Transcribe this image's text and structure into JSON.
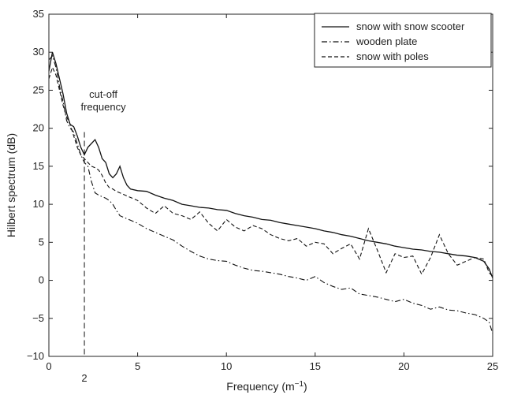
{
  "chart_data": {
    "type": "line",
    "xlabel": "Frequency (m",
    "xlabel_sup": "−1",
    "xlabel_close": ")",
    "ylabel": "Hilbert spectrum (dB)",
    "xlim": [
      0,
      25
    ],
    "ylim": [
      -10,
      35
    ],
    "xticks": [
      0,
      5,
      10,
      15,
      20,
      25
    ],
    "yticks": [
      -10,
      -5,
      0,
      5,
      10,
      15,
      20,
      25,
      30,
      35
    ],
    "grid": false,
    "legend_position": "top-right",
    "annotation": {
      "lines": [
        "cut-off",
        "frequency"
      ],
      "x": 2,
      "x_label": "2"
    },
    "series": [
      {
        "name": "snow with snow scooter",
        "style": "solid",
        "x": [
          0,
          0.2,
          0.4,
          0.6,
          0.8,
          1.0,
          1.2,
          1.4,
          1.6,
          1.8,
          2.0,
          2.2,
          2.4,
          2.6,
          2.8,
          3.0,
          3.2,
          3.4,
          3.6,
          3.8,
          4.0,
          4.2,
          4.4,
          4.6,
          5.0,
          5.5,
          6,
          6.5,
          7,
          7.5,
          8,
          8.5,
          9,
          9.5,
          10,
          10.5,
          11,
          11.5,
          12,
          12.5,
          13,
          13.5,
          14,
          14.5,
          15,
          15.5,
          16,
          16.5,
          17,
          17.5,
          18,
          18.5,
          19,
          19.5,
          20,
          20.5,
          21,
          21.5,
          22,
          22.5,
          23,
          23.5,
          24,
          24.5,
          24.8,
          25
        ],
        "y": [
          27.5,
          30.0,
          28.5,
          26.5,
          24.5,
          22.0,
          20.5,
          20.2,
          19.0,
          17.5,
          16.5,
          17.5,
          18.0,
          18.5,
          17.5,
          16.0,
          15.5,
          14.0,
          13.5,
          14.0,
          15.0,
          13.5,
          12.5,
          12.0,
          11.8,
          11.7,
          11.2,
          10.8,
          10.5,
          10.0,
          9.8,
          9.6,
          9.5,
          9.3,
          9.2,
          8.8,
          8.5,
          8.3,
          8.0,
          7.9,
          7.6,
          7.4,
          7.2,
          7.0,
          6.8,
          6.5,
          6.3,
          6.0,
          5.8,
          5.5,
          5.2,
          5.0,
          4.8,
          4.5,
          4.3,
          4.1,
          4.0,
          3.8,
          3.7,
          3.5,
          3.3,
          3.2,
          3.0,
          2.5,
          1.5,
          0.3
        ]
      },
      {
        "name": "wooden plate",
        "style": "dashdot",
        "x": [
          0,
          0.2,
          0.4,
          0.6,
          0.8,
          1.0,
          1.2,
          1.4,
          1.6,
          1.8,
          2.0,
          2.2,
          2.4,
          2.6,
          2.8,
          3.0,
          3.2,
          3.4,
          3.6,
          3.8,
          4.0,
          4.5,
          5,
          5.5,
          6,
          6.5,
          7,
          7.5,
          8,
          8.5,
          9,
          9.5,
          10,
          10.5,
          11,
          11.5,
          12,
          12.5,
          13,
          13.5,
          14,
          14.5,
          15,
          15.5,
          16,
          16.5,
          17,
          17.5,
          18,
          18.5,
          19,
          19.5,
          20,
          20.5,
          21,
          21.5,
          22,
          22.5,
          23,
          23.5,
          24,
          24.5,
          24.8,
          25
        ],
        "y": [
          29.0,
          29.5,
          28.0,
          25.5,
          23.5,
          21.0,
          20.0,
          19.5,
          18.0,
          16.5,
          15.5,
          15.0,
          13.0,
          11.5,
          11.2,
          11.0,
          10.8,
          10.5,
          10.0,
          9.2,
          8.5,
          8.0,
          7.5,
          6.8,
          6.3,
          5.8,
          5.3,
          4.5,
          3.8,
          3.2,
          2.8,
          2.6,
          2.5,
          2.0,
          1.6,
          1.3,
          1.2,
          1.0,
          0.8,
          0.5,
          0.3,
          0.0,
          0.5,
          -0.3,
          -0.8,
          -1.2,
          -1.0,
          -1.8,
          -2.0,
          -2.2,
          -2.5,
          -2.8,
          -2.5,
          -3.0,
          -3.3,
          -3.8,
          -3.5,
          -3.9,
          -4.0,
          -4.3,
          -4.5,
          -5.0,
          -5.5,
          -7.0
        ]
      },
      {
        "name": "snow with poles",
        "style": "dashed",
        "x": [
          0,
          0.2,
          0.4,
          0.6,
          0.8,
          1.0,
          1.2,
          1.4,
          1.6,
          1.8,
          2.0,
          2.2,
          2.4,
          2.6,
          2.8,
          3.0,
          3.2,
          3.4,
          3.6,
          3.8,
          4.0,
          4.5,
          5,
          5.5,
          6,
          6.5,
          7,
          7.5,
          8,
          8.5,
          9,
          9.5,
          10,
          10.5,
          11,
          11.5,
          12,
          12.5,
          13,
          13.5,
          14,
          14.5,
          15,
          15.5,
          16,
          16.5,
          17,
          17.5,
          18,
          18.5,
          19,
          19.5,
          20,
          20.5,
          21,
          21.5,
          22,
          22.5,
          23,
          23.5,
          24,
          24.5,
          24.8,
          25
        ],
        "y": [
          26.5,
          28.0,
          27.0,
          25.0,
          23.0,
          21.5,
          20.5,
          19.0,
          17.5,
          16.5,
          16.0,
          15.5,
          15.0,
          14.8,
          14.5,
          13.8,
          12.8,
          12.2,
          12.0,
          11.7,
          11.5,
          11.0,
          10.5,
          9.5,
          8.8,
          9.8,
          8.8,
          8.5,
          8.0,
          9.0,
          7.5,
          6.5,
          8.0,
          7.0,
          6.5,
          7.2,
          6.8,
          6.0,
          5.5,
          5.2,
          5.5,
          4.5,
          5.0,
          4.8,
          3.5,
          4.2,
          4.8,
          2.8,
          6.8,
          4.0,
          1.0,
          3.5,
          3.0,
          3.2,
          0.8,
          3.0,
          6.0,
          3.5,
          2.0,
          2.5,
          3.0,
          2.8,
          1.0,
          0.5
        ]
      }
    ]
  }
}
